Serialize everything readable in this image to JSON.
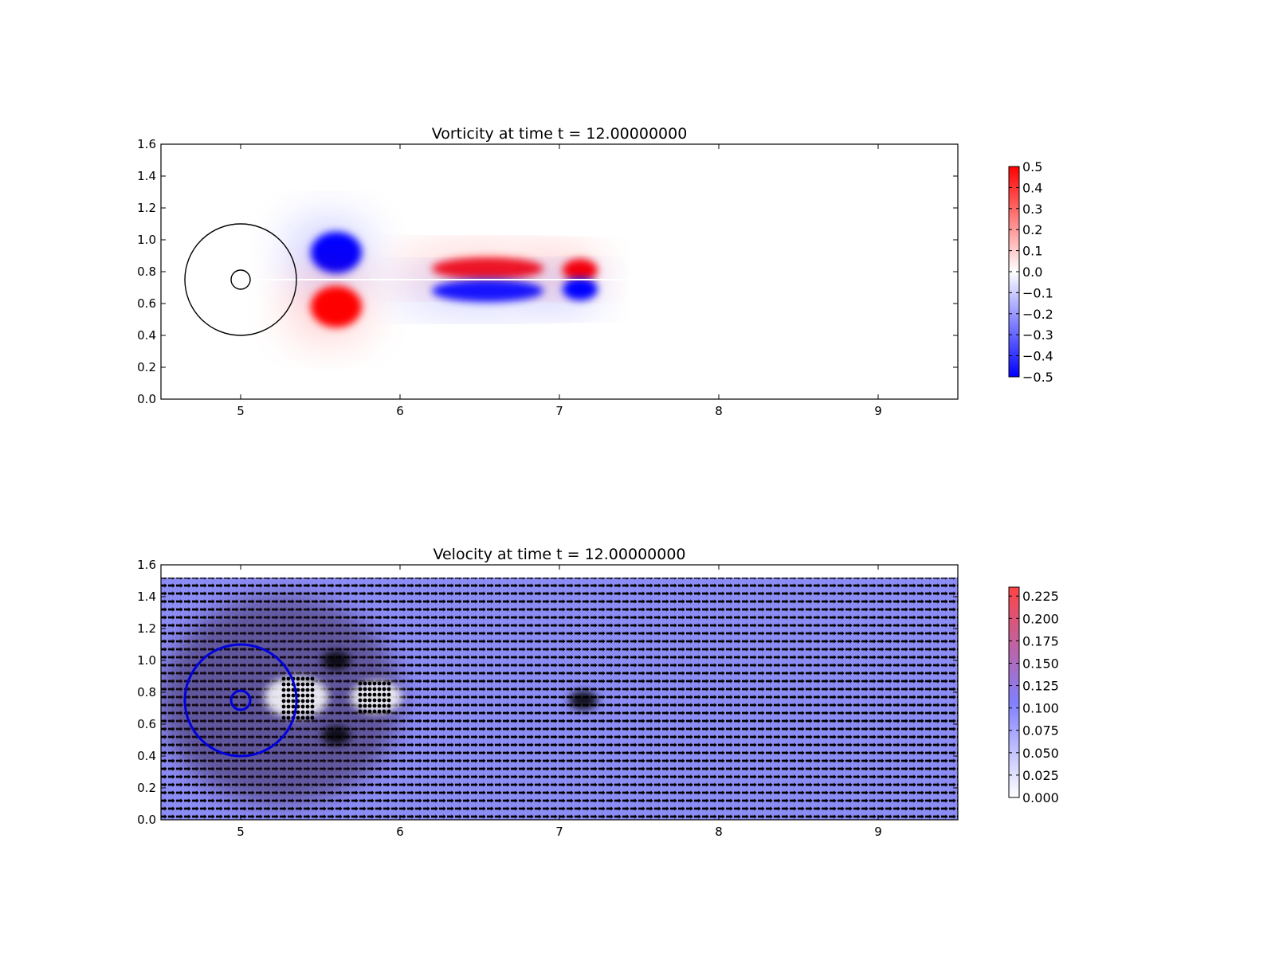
{
  "chart_data": [
    {
      "type": "heatmap",
      "title": "Vorticity at time t =     12.00000000",
      "xlabel": "",
      "ylabel": "",
      "xlim": [
        4.5,
        9.5
      ],
      "ylim": [
        0.0,
        1.6
      ],
      "xticks": [
        5,
        6,
        7,
        8,
        9
      ],
      "xtick_labels": [
        "5",
        "6",
        "7",
        "8",
        "9"
      ],
      "yticks": [
        0.0,
        0.2,
        0.4,
        0.6,
        0.8,
        1.0,
        1.2,
        1.4,
        1.6
      ],
      "ytick_labels": [
        "0.0",
        "0.2",
        "0.4",
        "0.6",
        "0.8",
        "1.0",
        "1.2",
        "1.4",
        "1.6"
      ],
      "colormap": "bwr",
      "colorbar": {
        "range": [
          -0.5,
          0.5
        ],
        "ticks": [
          0.5,
          0.4,
          0.3,
          0.2,
          0.1,
          0.0,
          -0.1,
          -0.2,
          -0.3,
          -0.4,
          -0.5
        ],
        "tick_labels": [
          "0.5",
          "0.4",
          "0.3",
          "0.2",
          "0.1",
          "0.0",
          "−0.1",
          "−0.2",
          "−0.3",
          "−0.4",
          "−0.5"
        ],
        "low_color": "#0000ff",
        "mid_color": "#ffffff",
        "high_color": "#ff0000"
      },
      "circles": [
        {
          "cx": 5.0,
          "cy": 0.75,
          "r": 0.35,
          "color": "#000000"
        },
        {
          "cx": 5.0,
          "cy": 0.75,
          "r": 0.06,
          "color": "#000000"
        }
      ],
      "vortices": [
        {
          "x": 5.6,
          "y": 0.92,
          "rx": 0.16,
          "ry": 0.13,
          "value": -0.5
        },
        {
          "x": 5.6,
          "y": 0.58,
          "rx": 0.16,
          "ry": 0.13,
          "value": 0.5
        },
        {
          "x": 6.55,
          "y": 0.82,
          "rx": 0.35,
          "ry": 0.07,
          "value": 0.45
        },
        {
          "x": 6.55,
          "y": 0.68,
          "rx": 0.35,
          "ry": 0.07,
          "value": -0.45
        },
        {
          "x": 7.13,
          "y": 0.81,
          "rx": 0.11,
          "ry": 0.07,
          "value": 0.5
        },
        {
          "x": 7.13,
          "y": 0.69,
          "rx": 0.11,
          "ry": 0.07,
          "value": -0.5
        }
      ],
      "grid": false
    },
    {
      "type": "heatmap",
      "title": "Velocity at time t =     12.00000000",
      "xlabel": "",
      "ylabel": "",
      "xlim": [
        4.5,
        9.5
      ],
      "ylim": [
        0.0,
        1.6
      ],
      "xticks": [
        5,
        6,
        7,
        8,
        9
      ],
      "xtick_labels": [
        "5",
        "6",
        "7",
        "8",
        "9"
      ],
      "yticks": [
        0.0,
        0.2,
        0.4,
        0.6,
        0.8,
        1.0,
        1.2,
        1.4,
        1.6
      ],
      "ytick_labels": [
        "0.0",
        "0.2",
        "0.4",
        "0.6",
        "0.8",
        "1.0",
        "1.2",
        "1.4",
        "1.6"
      ],
      "field_ylim": [
        0.0,
        1.52
      ],
      "colorbar": {
        "range": [
          0.0,
          0.235
        ],
        "ticks": [
          0.225,
          0.2,
          0.175,
          0.15,
          0.125,
          0.1,
          0.075,
          0.05,
          0.025,
          0.0
        ],
        "tick_labels": [
          "0.225",
          "0.200",
          "0.175",
          "0.150",
          "0.125",
          "0.100",
          "0.075",
          "0.050",
          "0.025",
          "0.000"
        ],
        "low_color": "#ffffff",
        "mid_color": "#8080ff",
        "high_color": "#ff3333"
      },
      "field_color": "#8c8cf5",
      "arrow_color": "#000000",
      "circles": [
        {
          "cx": 5.0,
          "cy": 0.75,
          "r": 0.35,
          "color": "#0000dd"
        },
        {
          "cx": 5.0,
          "cy": 0.75,
          "r": 0.06,
          "color": "#0000dd"
        }
      ],
      "grid": false
    }
  ]
}
